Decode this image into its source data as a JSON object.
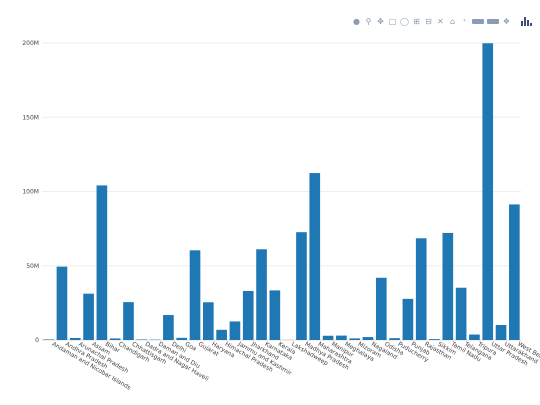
{
  "toolbar": {
    "icons": [
      "camera-icon",
      "zoom-icon",
      "pan-icon",
      "box-select-icon",
      "lasso-select-icon",
      "zoom-in-icon",
      "zoom-out-icon",
      "autoscale-icon",
      "reset-axes-icon",
      "spike-lines-icon",
      "hover-closest-icon",
      "hover-compare-icon",
      "toggle-spikes-icon",
      "plotly-logo-icon"
    ]
  },
  "colors": {
    "bar": "#1f77b4",
    "grid": "#eeeeee",
    "axis": "#444444",
    "modebar_icon": "#8c9db3",
    "logo": "#3f4f75"
  },
  "chart_data": {
    "type": "bar",
    "categories": [
      "Andaman and Nicobar Islands",
      "Andhra Pradesh",
      "Arunachal Pradesh",
      "Assam",
      "Bihar",
      "Chandigarh",
      "Chhattisgarh",
      "Dadra and Nagar Haveli",
      "Daman and Diu",
      "Delhi",
      "Goa",
      "Gujarat",
      "Haryana",
      "Himachal Pradesh",
      "Jammu and Kashmir",
      "Jharkhand",
      "Karnataka",
      "Kerala",
      "Lakshadweep",
      "Madhya Pradesh",
      "Maharashtra",
      "Manipur",
      "Meghalaya",
      "Mizoram",
      "Nagaland",
      "Odisha",
      "Puducherry",
      "Punjab",
      "Rajasthan",
      "Sikkim",
      "Tamil Nadu",
      "Telangana",
      "Tripura",
      "Uttar Pradesh",
      "Uttarakhand",
      "West Bengal"
    ],
    "values": [
      380000,
      49400000,
      1380000,
      31200000,
      104100000,
      1050000,
      25500000,
      340000,
      240000,
      16800000,
      1460000,
      60400000,
      25400000,
      6860000,
      12500000,
      33000000,
      61100000,
      33400000,
      64000,
      72600000,
      112400000,
      2860000,
      2970000,
      1100000,
      1980000,
      41900000,
      1250000,
      27700000,
      68500000,
      610000,
      72100000,
      35200000,
      3670000,
      199800000,
      10100000,
      91300000
    ],
    "ylim": [
      0,
      200000000
    ],
    "yticks": [
      0,
      50000000,
      100000000,
      150000000,
      200000000
    ],
    "ytick_labels": [
      "0",
      "50M",
      "100M",
      "150M",
      "200M"
    ],
    "grid": true,
    "title": "",
    "xlabel": "",
    "ylabel": ""
  }
}
